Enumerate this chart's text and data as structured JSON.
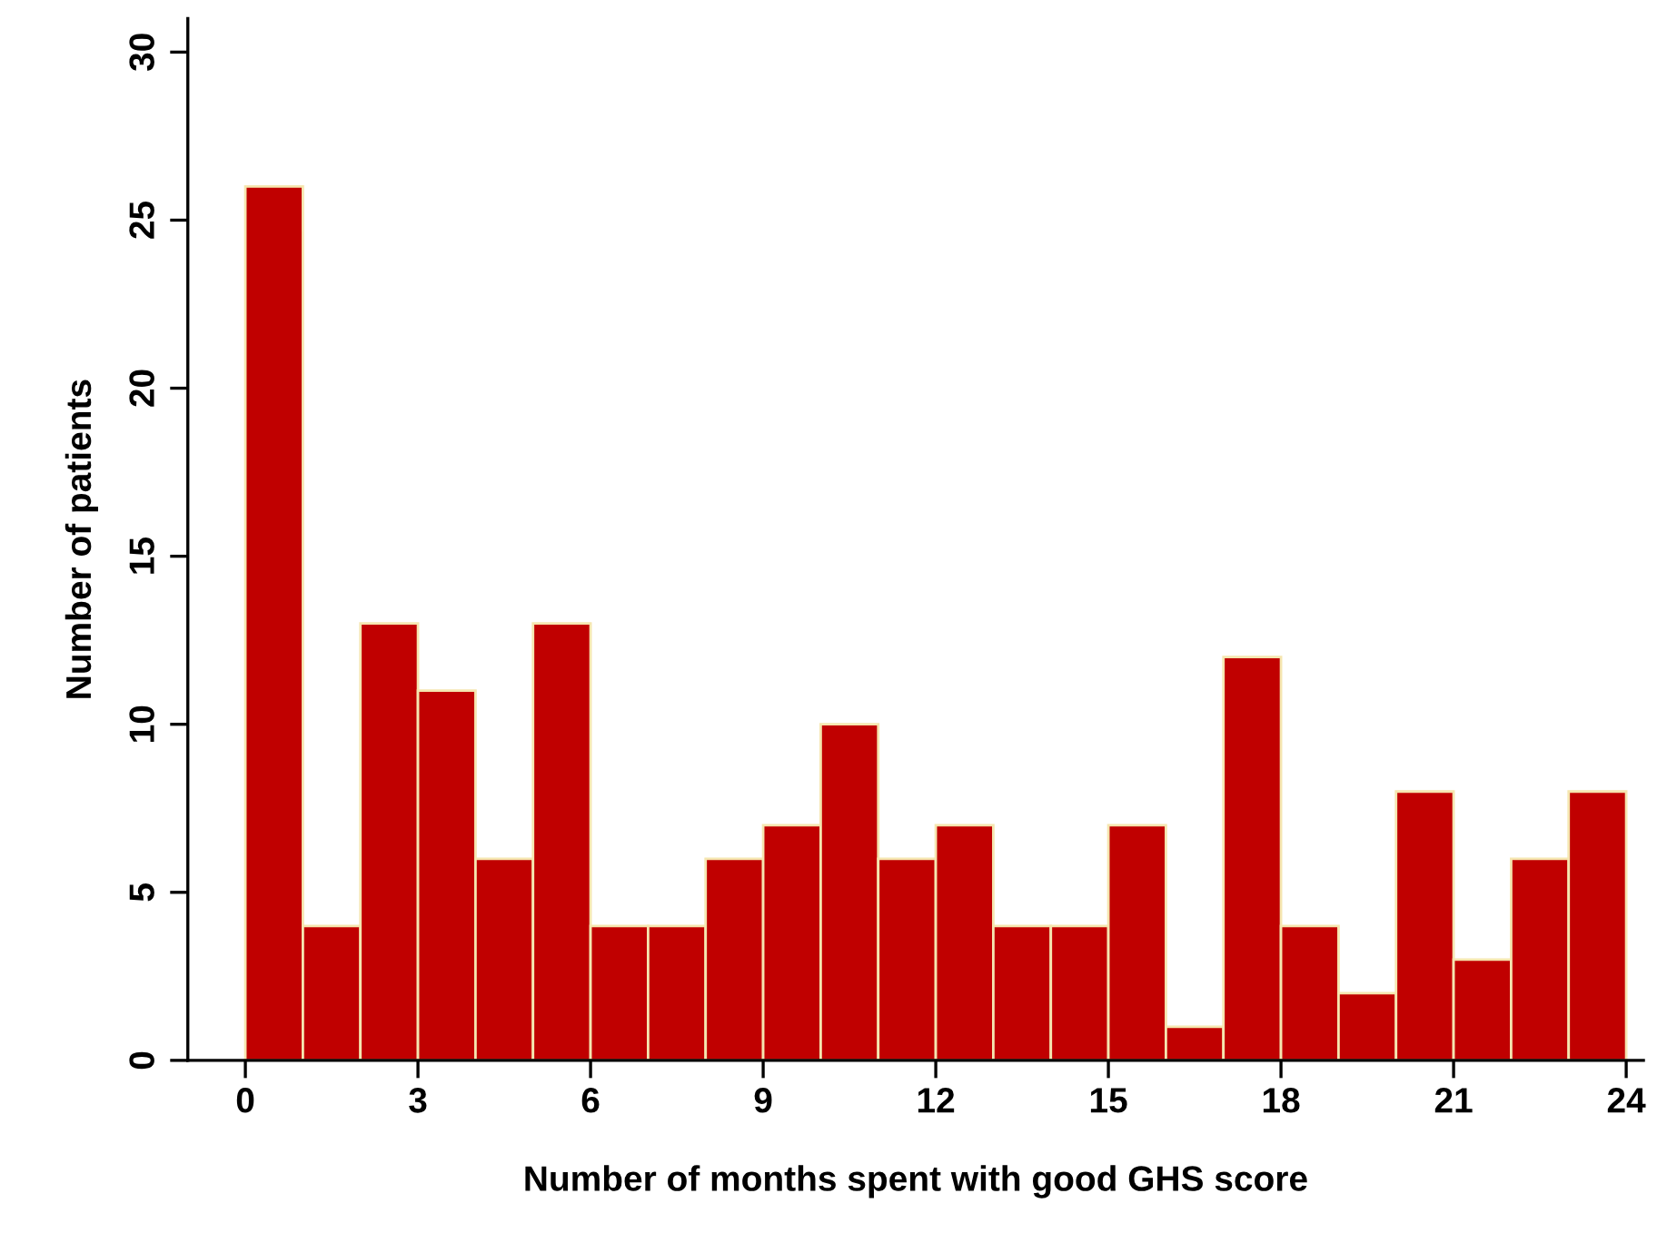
{
  "chart_data": {
    "type": "histogram",
    "xlabel": "Number of months spent with good GHS score",
    "ylabel": "Number of patients",
    "bins": [
      0,
      1,
      2,
      3,
      4,
      5,
      6,
      7,
      8,
      9,
      10,
      11,
      12,
      13,
      14,
      15,
      16,
      17,
      18,
      19,
      20,
      21,
      22,
      23,
      24
    ],
    "values": [
      26,
      4,
      13,
      11,
      6,
      13,
      4,
      4,
      6,
      7,
      10,
      6,
      7,
      4,
      4,
      7,
      1,
      12,
      4,
      2,
      8,
      3,
      6,
      8
    ],
    "color": "#c00000",
    "xlim": [
      -1,
      24.3
    ],
    "ylim": [
      0,
      31
    ],
    "xticks": [
      0,
      3,
      6,
      9,
      12,
      15,
      18,
      21,
      24
    ],
    "yticks": [
      0,
      5,
      10,
      15,
      20,
      25,
      30
    ],
    "grid": false,
    "legend": false
  }
}
